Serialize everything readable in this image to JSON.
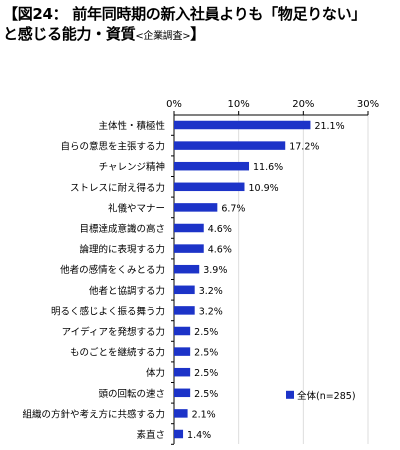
{
  "title": {
    "line1": "【図24： 前年同時期の新入社員よりも「物足りない」",
    "line2_main": "と感じる能力・資質",
    "line2_note": "<企業調査>",
    "line2_close": "】"
  },
  "colors": {
    "bar": "#1c33c8",
    "axis": "#000000",
    "grid": "#dddddd"
  },
  "chart_data": {
    "type": "bar",
    "orientation": "horizontal",
    "categories": [
      "主体性・積極性",
      "自らの意思を主張する力",
      "チャレンジ精神",
      "ストレスに耐え得る力",
      "礼儀やマナー",
      "目標達成意識の高さ",
      "論理的に表現する力",
      "他者の感情をくみとる力",
      "他者と協調する力",
      "明るく感じよく振る舞う力",
      "アイディアを発想する力",
      "ものごとを継続する力",
      "体力",
      "頭の回転の速さ",
      "組織の方針や考え方に共感する力",
      "素直さ"
    ],
    "series": [
      {
        "name": "全体(n=285)",
        "values": [
          21.1,
          17.2,
          11.6,
          10.9,
          6.7,
          4.6,
          4.6,
          3.9,
          3.2,
          3.2,
          2.5,
          2.5,
          2.5,
          2.5,
          2.1,
          1.4
        ]
      }
    ],
    "value_labels": [
      "21.1%",
      "17.2%",
      "11.6%",
      "10.9%",
      "6.7%",
      "4.6%",
      "4.6%",
      "3.9%",
      "3.2%",
      "3.2%",
      "2.5%",
      "2.5%",
      "2.5%",
      "2.5%",
      "2.1%",
      "1.4%"
    ],
    "xlim": [
      0,
      30
    ],
    "xticks": [
      0,
      10,
      20,
      30
    ],
    "xtick_labels": [
      "0%",
      "10%",
      "20%",
      "30%"
    ],
    "xaxis_position": "top",
    "grid": true,
    "legend_position": "bottom-right",
    "title": "",
    "xlabel": "",
    "ylabel": ""
  }
}
